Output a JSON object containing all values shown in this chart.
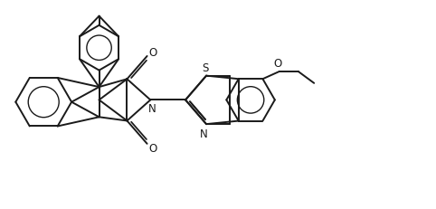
{
  "background_color": "#ffffff",
  "line_color": "#1a1a1a",
  "line_width": 1.4,
  "figsize": [
    4.82,
    2.32
  ],
  "dpi": 100,
  "xlim": [
    0,
    10
  ],
  "ylim": [
    0,
    5
  ],
  "label_fontsize": 8.5
}
